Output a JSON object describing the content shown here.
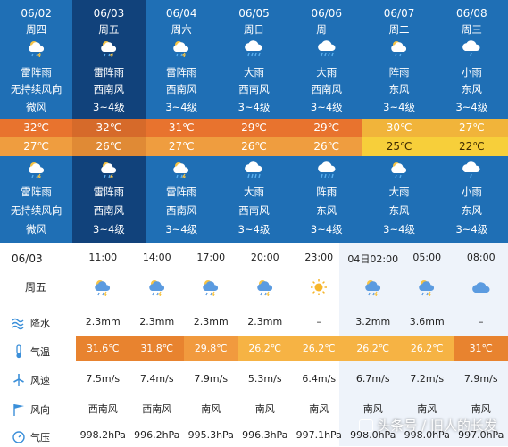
{
  "days": [
    {
      "date": "06/02",
      "weekday": "周四",
      "day_wx": "雷阵雨",
      "day_wind_dir": "无持续风向",
      "day_wind_lvl": "微风",
      "high": "32℃",
      "low": "27℃",
      "night_wx": "雷阵雨",
      "night_wind_dir": "无持续风向",
      "night_wind_lvl": "微风",
      "icon": "thunder-rain-icon"
    },
    {
      "date": "06/03",
      "weekday": "周五",
      "day_wx": "雷阵雨",
      "day_wind_dir": "西南风",
      "day_wind_lvl": "3~4级",
      "high": "32℃",
      "low": "26℃",
      "night_wx": "雷阵雨",
      "night_wind_dir": "西南风",
      "night_wind_lvl": "3~4级",
      "icon": "thunder-rain-icon",
      "selected": true
    },
    {
      "date": "06/04",
      "weekday": "周六",
      "day_wx": "雷阵雨",
      "day_wind_dir": "西南风",
      "day_wind_lvl": "3~4级",
      "high": "31℃",
      "low": "27℃",
      "night_wx": "雷阵雨",
      "night_wind_dir": "西南风",
      "night_wind_lvl": "3~4级",
      "icon": "thunder-rain-icon"
    },
    {
      "date": "06/05",
      "weekday": "周日",
      "day_wx": "大雨",
      "day_wind_dir": "西南风",
      "day_wind_lvl": "3~4级",
      "high": "29℃",
      "low": "26℃",
      "night_wx": "大雨",
      "night_wind_dir": "西南风",
      "night_wind_lvl": "3~4级",
      "icon": "heavy-rain-icon"
    },
    {
      "date": "06/06",
      "weekday": "周一",
      "day_wx": "大雨",
      "day_wind_dir": "西南风",
      "day_wind_lvl": "3~4级",
      "high": "29℃",
      "low": "26℃",
      "night_wx": "阵雨",
      "night_wind_dir": "东风",
      "night_wind_lvl": "3~4级",
      "icon": "heavy-rain-icon"
    },
    {
      "date": "06/07",
      "weekday": "周二",
      "day_wx": "阵雨",
      "day_wind_dir": "东风",
      "day_wind_lvl": "3~4级",
      "high": "30℃",
      "low": "25℃",
      "night_wx": "大雨",
      "night_wind_dir": "东风",
      "night_wind_lvl": "3~4级",
      "icon": "shower-icon",
      "yellow": true
    },
    {
      "date": "06/08",
      "weekday": "周三",
      "day_wx": "小雨",
      "day_wind_dir": "东风",
      "day_wind_lvl": "3~4级",
      "high": "27℃",
      "low": "22℃",
      "night_wx": "小雨",
      "night_wind_dir": "东风",
      "night_wind_lvl": "3~4级",
      "icon": "light-rain-icon",
      "yellow": true
    }
  ],
  "hourly": {
    "date": "06/03",
    "weekday": "周五",
    "row_labels": {
      "precip": "降水",
      "temp": "气温",
      "wind_speed": "风速",
      "wind_dir": "风向",
      "pressure": "气压"
    },
    "times": [
      "11:00",
      "14:00",
      "17:00",
      "20:00",
      "23:00",
      "04日02:00",
      "05:00",
      "08:00"
    ],
    "icons": [
      "thunder-rain-icon",
      "thunder-rain-icon",
      "thunder-rain-icon",
      "thunder-rain-icon",
      "sun-icon",
      "thunder-rain-icon",
      "thunder-rain-icon",
      "cloud-icon"
    ],
    "precip": [
      "2.3mm",
      "2.3mm",
      "2.3mm",
      "2.3mm",
      "–",
      "3.2mm",
      "3.6mm",
      "–"
    ],
    "temp": [
      "31.6℃",
      "31.8℃",
      "29.8℃",
      "26.2℃",
      "26.2℃",
      "26.2℃",
      "26.2℃",
      "31℃"
    ],
    "wind_speed": [
      "7.5m/s",
      "7.4m/s",
      "7.9m/s",
      "5.3m/s",
      "6.4m/s",
      "6.7m/s",
      "7.2m/s",
      "7.9m/s"
    ],
    "wind_dir": [
      "西南风",
      "西南风",
      "南风",
      "南风",
      "南风",
      "南风",
      "南风",
      "南风"
    ],
    "pressure": [
      "998.2hPa",
      "996.2hPa",
      "995.3hPa",
      "996.3hPa",
      "997.1hPa",
      "998.0hPa",
      "998.0hPa",
      "997.0hPa"
    ]
  },
  "colors": {
    "top_bg": "#1f6fb5",
    "selected_bg": "#11427b",
    "temp_hot": "#e8732e",
    "temp_warm": "#ef9d3f",
    "temp_yellow": "#f7cf3a"
  },
  "watermark": "头条号 / 旧人的长发"
}
